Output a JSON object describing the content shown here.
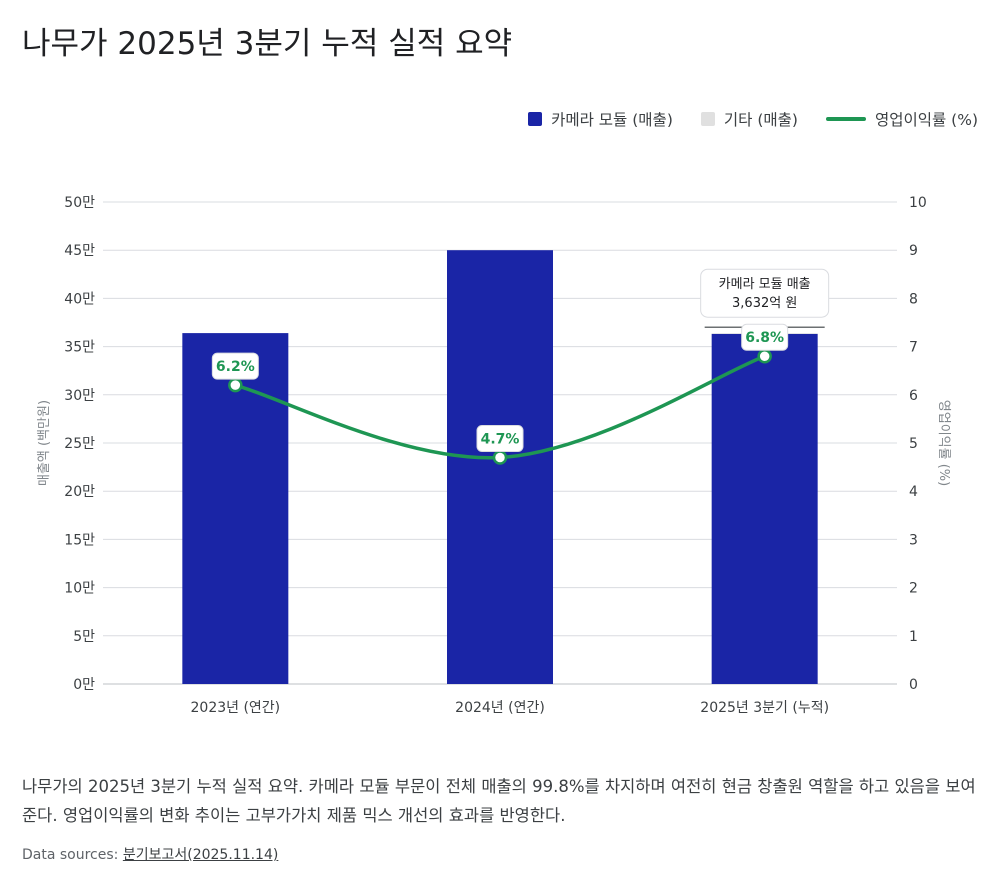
{
  "title": "나무가 2025년 3분기 누적 실적 요약",
  "legend": [
    {
      "label": "카메라 모듈 (매출)",
      "color": "#1a25a6",
      "kind": "box"
    },
    {
      "label": "기타 (매출)",
      "color": "#e0e0e0",
      "kind": "box"
    },
    {
      "label": "영업이익률 (%)",
      "color": "#1e9653",
      "kind": "line"
    }
  ],
  "chart_data": {
    "type": "bar",
    "categories": [
      "2023년 (연간)",
      "2024년 (연간)",
      "2025년 3분기 (누적)"
    ],
    "series": [
      {
        "name": "카메라 모듈 (매출)",
        "type": "bar",
        "axis": "left",
        "color": "#1a25a6",
        "values": [
          364000,
          450000,
          363200
        ]
      },
      {
        "name": "기타 (매출)",
        "type": "bar",
        "axis": "left",
        "color": "#e0e0e0",
        "values": [
          0,
          0,
          700
        ]
      },
      {
        "name": "영업이익률 (%)",
        "type": "line",
        "axis": "right",
        "color": "#1e9653",
        "values": [
          6.2,
          4.7,
          6.8
        ],
        "labels": [
          "6.2%",
          "4.7%",
          "6.8%"
        ]
      }
    ],
    "ylabel": "매출액 (백만원)",
    "y2label": "영업이익률 (%)",
    "ylim": [
      0,
      500000
    ],
    "y2lim": [
      0,
      10
    ],
    "yticks": [
      "0만",
      "5만",
      "10만",
      "15만",
      "20만",
      "25만",
      "30만",
      "35만",
      "40만",
      "45만",
      "50만"
    ],
    "y2ticks": [
      "0",
      "1",
      "2",
      "3",
      "4",
      "5",
      "6",
      "7",
      "8",
      "9",
      "10"
    ],
    "grid": true,
    "legend_position": "top-right",
    "annotation": {
      "category_index": 2,
      "lines": [
        "카메라 모듈 매출",
        "3,632억 원"
      ]
    }
  },
  "caption": "나무가의 2025년 3분기 누적 실적 요약. 카메라 모듈 부문이 전체 매출의 99.8%를 차지하며 여전히 현금 창출원 역할을 하고 있음을 보여준다. 영업이익률의 변화 추이는 고부가가치 제품 믹스 개선의 효과를 반영한다.",
  "sources": {
    "label": "Data sources:",
    "link_text": "분기보고서(2025.11.14)"
  }
}
